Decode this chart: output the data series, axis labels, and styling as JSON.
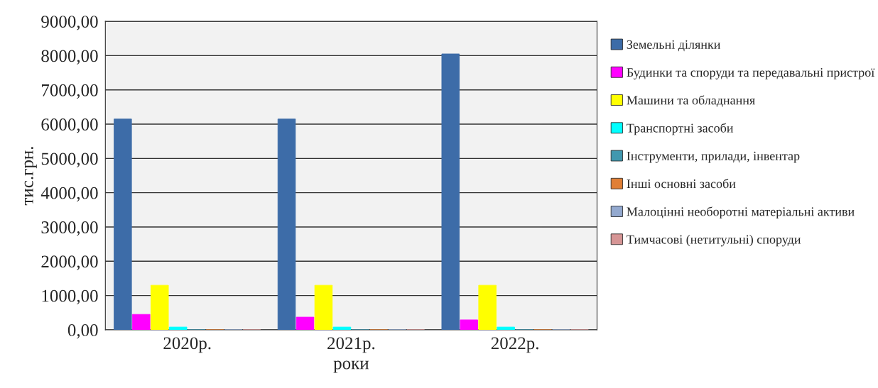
{
  "chart_data": {
    "type": "bar",
    "categories": [
      "2020р.",
      "2021р.",
      "2022р."
    ],
    "xlabel": "роки",
    "ylabel": "тис.грн.",
    "series": [
      {
        "name": "Земельні ділянки",
        "color": "#3d6ca8",
        "values": [
          6150,
          6150,
          8050
        ]
      },
      {
        "name": "Будинки та споруди та передавальні пристрої",
        "color": "#ff00ff",
        "values": [
          450,
          370,
          290
        ]
      },
      {
        "name": "Машини та обладнання",
        "color": "#ffff00",
        "values": [
          1300,
          1300,
          1300
        ]
      },
      {
        "name": "Транспортні засоби",
        "color": "#00ffff",
        "values": [
          80,
          80,
          80
        ]
      },
      {
        "name": "Інструменти, прилади, інвентар",
        "color": "#4198af",
        "values": [
          0,
          0,
          0
        ]
      },
      {
        "name": "Інші основні засоби",
        "color": "#e07f35",
        "values": [
          0,
          0,
          0
        ]
      },
      {
        "name": "Малоцінні необоротні матеріальні активи",
        "color": "#93a9cf",
        "values": [
          0,
          0,
          0
        ]
      },
      {
        "name": "Тимчасові (нетитульні) споруди",
        "color": "#d69595",
        "values": [
          0,
          0,
          0
        ]
      }
    ],
    "ylim": [
      0,
      9000
    ],
    "yticks": [
      {
        "value": 0,
        "label": "0,00"
      },
      {
        "value": 1000,
        "label": "1000,00"
      },
      {
        "value": 2000,
        "label": "2000,00"
      },
      {
        "value": 3000,
        "label": "3000,00"
      },
      {
        "value": 4000,
        "label": "4000,00"
      },
      {
        "value": 5000,
        "label": "5000,00"
      },
      {
        "value": 6000,
        "label": "6000,00"
      },
      {
        "value": 7000,
        "label": "7000,00"
      },
      {
        "value": 8000,
        "label": "8000,00"
      },
      {
        "value": 9000,
        "label": "9000,00"
      }
    ],
    "grid": "y",
    "legend": "right"
  }
}
